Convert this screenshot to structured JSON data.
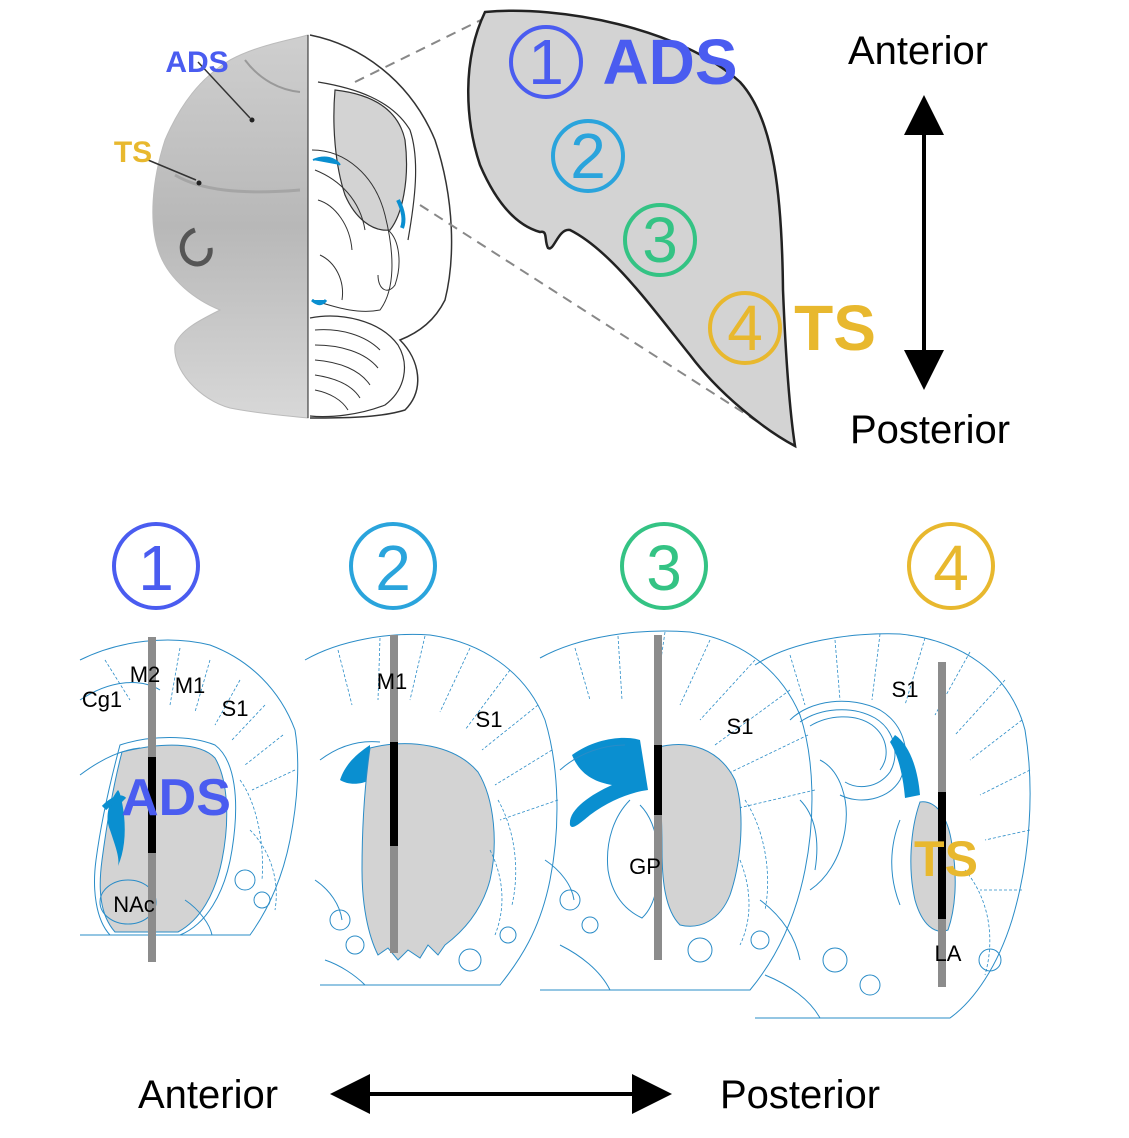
{
  "colors": {
    "site1": "#4a5cf0",
    "site2": "#2aa4dc",
    "site3": "#34c384",
    "site4": "#e8b82e",
    "atlas_line": "#2a8cc7",
    "ventricle": "#0a8fd0",
    "striatum": "#d3d3d3",
    "probe_gray": "#8c8c8c",
    "probe_black": "#000000"
  },
  "top_panel": {
    "photo_labels": {
      "ads": "ADS",
      "ts": "TS"
    },
    "outline_big_labels": {
      "ads": "ADS",
      "ts": "TS"
    },
    "outline_numbers": [
      "1",
      "2",
      "3",
      "4"
    ],
    "axis": {
      "top": "Anterior",
      "bottom": "Posterior"
    }
  },
  "sections": [
    {
      "number": "1",
      "regions": [
        "M2",
        "M1",
        "Cg1",
        "S1",
        "NAc"
      ],
      "label": "ADS"
    },
    {
      "number": "2",
      "regions": [
        "M1",
        "S1"
      ],
      "label": ""
    },
    {
      "number": "3",
      "regions": [
        "S1",
        "GP"
      ],
      "label": ""
    },
    {
      "number": "4",
      "regions": [
        "S1",
        "LA"
      ],
      "label": "TS"
    }
  ],
  "bottom_axis": {
    "left": "Anterior",
    "right": "Posterior"
  }
}
